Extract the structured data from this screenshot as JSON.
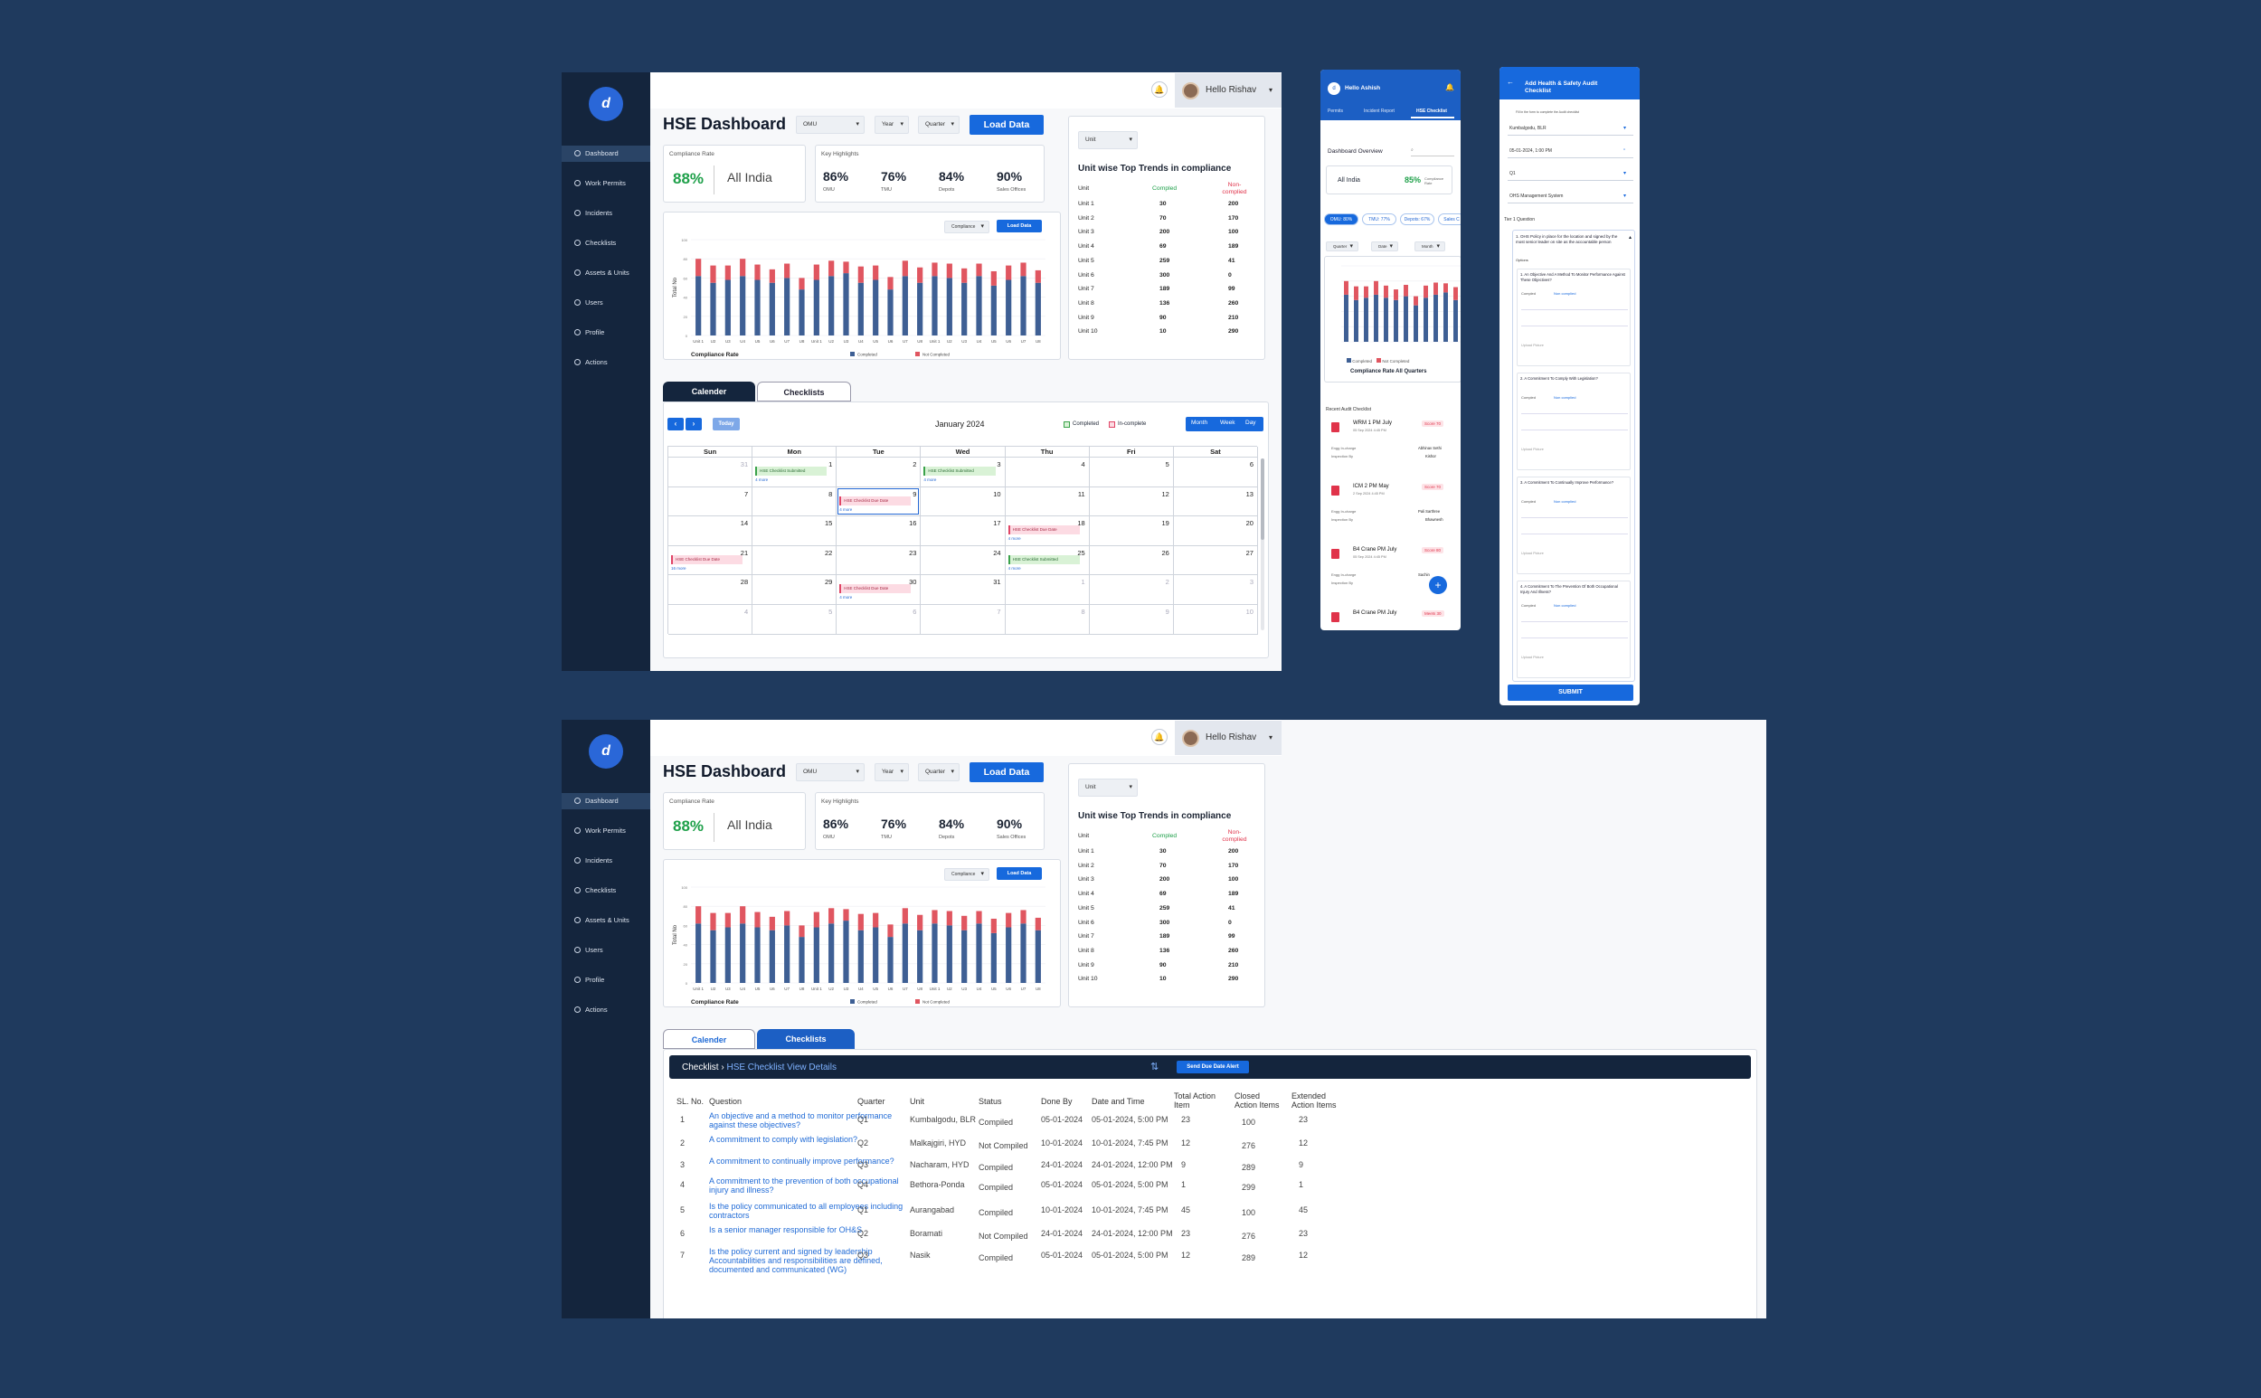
{
  "app": {
    "title": "HSE Dashboard",
    "greeting": "Hello Rishav",
    "load_data": "Load Data"
  },
  "sidebar": {
    "items": [
      {
        "label": "Dashboard",
        "active": true
      },
      {
        "label": "Work Permits"
      },
      {
        "label": "Incidents"
      },
      {
        "label": "Checklists"
      },
      {
        "label": "Assets & Units"
      },
      {
        "label": "Users"
      },
      {
        "label": "Profile"
      },
      {
        "label": "Actions"
      }
    ]
  },
  "filters": {
    "omu": "OMU",
    "year": "Year",
    "quarter": "Quarter",
    "unit": "Unit",
    "compliance": "Compliance",
    "load_data_small": "Load Data"
  },
  "compliance": {
    "label": "Compliance Rate",
    "value": "88%",
    "region": "All India"
  },
  "highlights": {
    "label": "Key Highlights",
    "items": [
      {
        "value": "86%",
        "name": "OMU"
      },
      {
        "value": "76%",
        "name": "TMU"
      },
      {
        "value": "84%",
        "name": "Depots"
      },
      {
        "value": "90%",
        "name": "Sales Offices"
      }
    ]
  },
  "chart_data": {
    "type": "bar",
    "ylabel": "Total No",
    "xlabel": "Compliance Rate",
    "categories": [
      "Unit 1",
      "U2",
      "U3",
      "U4",
      "U5",
      "U6",
      "U7",
      "U8",
      "Unit 1",
      "U2",
      "U3",
      "U4",
      "U5",
      "U6",
      "U7",
      "U8",
      "Unit 1",
      "U2",
      "U3",
      "U4",
      "U5",
      "U6",
      "U7",
      "U8"
    ],
    "ylim": [
      0,
      100
    ],
    "series": [
      {
        "name": "Completed",
        "color": "#3e5f94",
        "values": [
          62,
          55,
          58,
          62,
          58,
          55,
          60,
          48,
          58,
          62,
          65,
          55,
          58,
          48,
          62,
          55,
          62,
          60,
          55,
          62,
          52,
          58,
          62,
          55
        ]
      },
      {
        "name": "Not Completed",
        "color": "#e05660",
        "values": [
          18,
          18,
          15,
          18,
          16,
          14,
          15,
          12,
          16,
          16,
          12,
          17,
          15,
          13,
          16,
          16,
          14,
          15,
          15,
          13,
          15,
          15,
          14,
          13
        ]
      }
    ]
  },
  "trends": {
    "title": "Unit wise Top Trends in compliance",
    "col_unit": "Unit",
    "col_completed": "Compled",
    "col_not": "Non-complied",
    "rows": [
      {
        "unit": "Unit 1",
        "c": "30",
        "n": "200"
      },
      {
        "unit": "Unit 2",
        "c": "70",
        "n": "170"
      },
      {
        "unit": "Unit 3",
        "c": "200",
        "n": "100"
      },
      {
        "unit": "Unit 4",
        "c": "69",
        "n": "189"
      },
      {
        "unit": "Unit 5",
        "c": "259",
        "n": "41"
      },
      {
        "unit": "Unit 6",
        "c": "300",
        "n": "0"
      },
      {
        "unit": "Unit 7",
        "c": "189",
        "n": "99"
      },
      {
        "unit": "Unit 8",
        "c": "136",
        "n": "260"
      },
      {
        "unit": "Unit 9",
        "c": "90",
        "n": "210"
      },
      {
        "unit": "Unit 10",
        "c": "10",
        "n": "290"
      }
    ]
  },
  "tabs": {
    "calendar": "Calender",
    "checklists": "Checklists"
  },
  "calendar": {
    "month": "January 2024",
    "today": "Today",
    "legend_completed": "Completed",
    "legend_incomplete": "In-complete",
    "views": [
      "Month",
      "Week",
      "Day"
    ],
    "days": [
      "Sun",
      "Mon",
      "Tue",
      "Wed",
      "Thu",
      "Fri",
      "Sat"
    ],
    "dates": [
      [
        "31",
        "1",
        "2",
        "3",
        "4",
        "5",
        "6"
      ],
      [
        "7",
        "8",
        "9",
        "10",
        "11",
        "12",
        "13"
      ],
      [
        "14",
        "15",
        "16",
        "17",
        "18",
        "19",
        "20"
      ],
      [
        "21",
        "22",
        "23",
        "24",
        "25",
        "26",
        "27"
      ],
      [
        "28",
        "29",
        "30",
        "31",
        "1",
        "2",
        "3"
      ],
      [
        "4",
        "5",
        "6",
        "7",
        "8",
        "9",
        "10"
      ]
    ],
    "event_due": "HSE Checklist Due Date",
    "event_done": "HSE Checklist Submitted",
    "more": "4 more",
    "more2": "16 more"
  },
  "mobile1": {
    "greeting": "Hello Ashish",
    "tabs": [
      "Permits",
      "Incident Report",
      "HSE Checklist"
    ],
    "overview": "Dashboard Overview",
    "region": "All India",
    "rate": "85%",
    "rate_label": "Compliance Rate",
    "chips": [
      "OMU: 80%",
      "TMU: 77%",
      "Depots: 67%",
      "Sales C"
    ],
    "filters": [
      "Quarter",
      "Date",
      "Month"
    ],
    "chart_title": "Compliance Rate All Quarters",
    "legend": [
      "Completed",
      "Not Completed"
    ],
    "recent": "Recent Audit Checklist",
    "items": [
      {
        "name": "WRM 1 PM July",
        "score": "Score 70",
        "meta": "05 Sep 2024 4:45 PM",
        "incharge": "Abhinav Sethi",
        "inspector": "Kishor"
      },
      {
        "name": "ICM 2 PM May",
        "score": "Score 70",
        "meta": "2 Sep 2024 4:45 PM",
        "incharge": "Pali Sarthree",
        "inspector": "Bhawnesh"
      },
      {
        "name": "B4 Crane PM July",
        "score": "Score 80",
        "meta": "05 Sep 2024 4:45 PM",
        "incharge": "Sachin",
        "inspector": ""
      },
      {
        "name": "B4 Crane PM July",
        "score": "Meets 30",
        "meta": "",
        "incharge": "",
        "inspector": ""
      }
    ],
    "incharge_label": "Engg In-charge",
    "inspector_label": "Inspection By"
  },
  "mobile2": {
    "title": "Add Health & Safety Audit Checklist",
    "note": "Fill in the form to complete the Audit checklist",
    "fields": [
      "Kumbalgodu, BLR",
      "05-01-2024, 1:00 PM",
      "Q1",
      "OHS Management System"
    ],
    "tier": "Tier 1 Question",
    "main_q": "1. OHS Policy in place for the location and signed by the most senior leader on site as the accountable person",
    "options": "Options",
    "questions": [
      "1. An Objective And A Method To Monitor Performance Against These Objectives?",
      "2. A Commitment To Comply With Legislation?",
      "3. A Commitment To Continually Improve Performance?",
      "4. A Commitment To The Prevention Of Both Occupational Injury And Illness?"
    ],
    "completed": "Compled",
    "not_completed": "Non complied",
    "upload": "Upload Picture",
    "submit": "SUBMIT"
  },
  "checklist": {
    "breadcrumb_root": "Checklist",
    "breadcrumb_leaf": "HSE Checklist View Details",
    "send_alert": "Send Due Date Alert",
    "headers": [
      "SL. No.",
      "Question",
      "Quarter",
      "Unit",
      "Status",
      "Done By",
      "Date and Time",
      "Total Action Item",
      "Closed Action Items",
      "Extended Action Items"
    ],
    "rows": [
      {
        "sl": "1",
        "q": "An objective and a method to monitor performance against these objectives?",
        "quarter": "Q1",
        "unit": "Kumbalgodu, BLR",
        "status": "Compiled",
        "done": "05-01-2024",
        "dt": "05-01-2024, 5:00 PM",
        "total": "23",
        "closed": "100",
        "ext": "23"
      },
      {
        "sl": "2",
        "q": "A commitment to comply with legislation?",
        "quarter": "Q2",
        "unit": "Malkajgiri, HYD",
        "status": "Not Compiled",
        "done": "10-01-2024",
        "dt": "10-01-2024, 7:45 PM",
        "total": "12",
        "closed": "276",
        "ext": "12"
      },
      {
        "sl": "3",
        "q": "A commitment to continually improve performance?",
        "quarter": "Q3",
        "unit": "Nacharam, HYD",
        "status": "Compiled",
        "done": "24-01-2024",
        "dt": "24-01-2024, 12:00 PM",
        "total": "9",
        "closed": "289",
        "ext": "9"
      },
      {
        "sl": "4",
        "q": "A commitment to the prevention of both occupational injury and illness?",
        "quarter": "Q4",
        "unit": "Bethora-Ponda",
        "status": "Compiled",
        "done": "05-01-2024",
        "dt": "05-01-2024, 5:00 PM",
        "total": "1",
        "closed": "299",
        "ext": "1"
      },
      {
        "sl": "5",
        "q": "Is the policy communicated to all employees including contractors",
        "quarter": "Q1",
        "unit": "Aurangabad",
        "status": "Compiled",
        "done": "10-01-2024",
        "dt": "10-01-2024, 7:45 PM",
        "total": "45",
        "closed": "100",
        "ext": "45"
      },
      {
        "sl": "6",
        "q": "Is a senior manager responsible for OH&S",
        "quarter": "Q2",
        "unit": "Boramati",
        "status": "Not Compiled",
        "done": "24-01-2024",
        "dt": "24-01-2024, 12:00 PM",
        "total": "23",
        "closed": "276",
        "ext": "23"
      },
      {
        "sl": "7",
        "q": "Is the policy current and signed by leadership Accountabilities and responsibilities are defined, documented and communicated (WG)",
        "quarter": "Q3",
        "unit": "Nasik",
        "status": "Compiled",
        "done": "05-01-2024",
        "dt": "05-01-2024, 5:00 PM",
        "total": "12",
        "closed": "289",
        "ext": "12"
      }
    ]
  }
}
